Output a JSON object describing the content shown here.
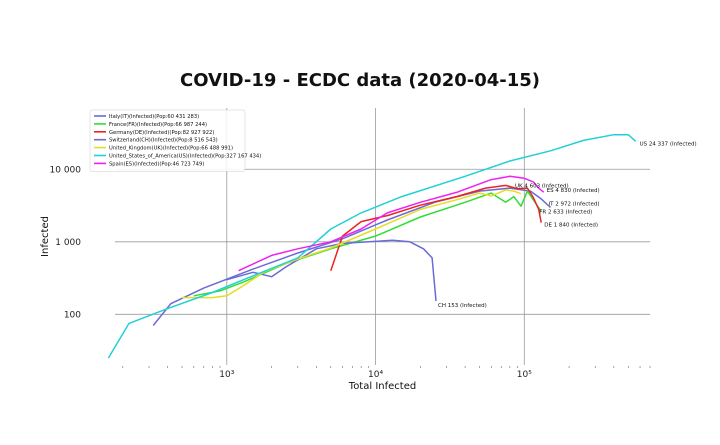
{
  "chart_data": {
    "type": "line",
    "title": "COVID-19 - ECDC data (2020-04-15)",
    "xlabel": "Total Infected",
    "ylabel": "Infected",
    "xscale": "log",
    "yscale": "log",
    "xlim": [
      130,
      700000
    ],
    "ylim": [
      20,
      70000
    ],
    "x_ticks": [
      {
        "value": 1000,
        "label": "10³"
      },
      {
        "value": 10000,
        "label": "10⁴"
      },
      {
        "value": 100000,
        "label": "10⁵"
      }
    ],
    "y_ticks": [
      {
        "value": 100,
        "label": "100"
      },
      {
        "value": 1000,
        "label": "1 000"
      },
      {
        "value": 10000,
        "label": "10 000"
      }
    ],
    "grid": true,
    "legend_position": "top-left",
    "series": [
      {
        "name": "Italy(IT)(Infected)(Pop:60 431 283)",
        "color": "#6a6ad8",
        "end_label": "IT 2 972 (Infected)",
        "points": [
          [
            320,
            70
          ],
          [
            420,
            140
          ],
          [
            700,
            230
          ],
          [
            1500,
            420
          ],
          [
            3000,
            700
          ],
          [
            6000,
            1100
          ],
          [
            12000,
            2000
          ],
          [
            25000,
            3500
          ],
          [
            50000,
            5000
          ],
          [
            80000,
            5500
          ],
          [
            110000,
            5000
          ],
          [
            130000,
            3900
          ],
          [
            150000,
            2972
          ]
        ]
      },
      {
        "name": "France(FR)(Infected)(Pop:66 987 244)",
        "color": "#33dd33",
        "end_label": "FR 2 633 (Infected)",
        "points": [
          [
            600,
            180
          ],
          [
            900,
            210
          ],
          [
            1300,
            280
          ],
          [
            2500,
            500
          ],
          [
            5000,
            800
          ],
          [
            10000,
            1200
          ],
          [
            20000,
            2200
          ],
          [
            40000,
            3500
          ],
          [
            60000,
            4700
          ],
          [
            75000,
            3500
          ],
          [
            85000,
            4200
          ],
          [
            95000,
            3100
          ],
          [
            105000,
            5000
          ],
          [
            115000,
            3800
          ],
          [
            130000,
            2633
          ]
        ]
      },
      {
        "name": "Germany(DE)(Infected)(Pop:82 927 922)",
        "color": "#ee2222",
        "end_label": "DE 1 840 (Infected)",
        "points": [
          [
            5000,
            400
          ],
          [
            6000,
            1200
          ],
          [
            8000,
            1900
          ],
          [
            12000,
            2300
          ],
          [
            20000,
            3200
          ],
          [
            35000,
            4200
          ],
          [
            55000,
            5500
          ],
          [
            75000,
            6000
          ],
          [
            90000,
            5400
          ],
          [
            105000,
            5500
          ],
          [
            115000,
            4100
          ],
          [
            125000,
            2800
          ],
          [
            130000,
            1840
          ]
        ]
      },
      {
        "name": "Switzerland(CH)(Infected)(Pop:8 516 543)",
        "color": "#6a6ad8",
        "end_label": "CH 153 (Infected)",
        "points": [
          [
            1000,
            300
          ],
          [
            1500,
            380
          ],
          [
            2000,
            330
          ],
          [
            2500,
            450
          ],
          [
            4000,
            800
          ],
          [
            6000,
            950
          ],
          [
            9000,
            1000
          ],
          [
            13000,
            1050
          ],
          [
            17000,
            1000
          ],
          [
            21000,
            800
          ],
          [
            24000,
            600
          ],
          [
            25500,
            153
          ]
        ]
      },
      {
        "name": "United_Kingdom(UK)(Infected)(Pop:66 488 991)",
        "color": "#e6dd22",
        "end_label": "UK 4 603 (Infected)",
        "points": [
          [
            500,
            170
          ],
          [
            800,
            170
          ],
          [
            1000,
            180
          ],
          [
            1300,
            250
          ],
          [
            1800,
            390
          ],
          [
            3000,
            580
          ],
          [
            5000,
            820
          ],
          [
            10000,
            1500
          ],
          [
            20000,
            2800
          ],
          [
            35000,
            3800
          ],
          [
            50000,
            4700
          ],
          [
            60000,
            4300
          ],
          [
            75000,
            5200
          ],
          [
            85000,
            5000
          ],
          [
            95000,
            4603
          ]
        ]
      },
      {
        "name": "United_States_of_America(US)(Infected)(Pop:327 167 434)",
        "color": "#22d0d8",
        "end_label": "US 24 337 (Infected)",
        "points": [
          [
            160,
            25
          ],
          [
            220,
            75
          ],
          [
            400,
            120
          ],
          [
            800,
            200
          ],
          [
            1500,
            340
          ],
          [
            3000,
            600
          ],
          [
            5000,
            1500
          ],
          [
            8000,
            2500
          ],
          [
            15000,
            4200
          ],
          [
            40000,
            8000
          ],
          [
            80000,
            13000
          ],
          [
            150000,
            18000
          ],
          [
            250000,
            25000
          ],
          [
            400000,
            30000
          ],
          [
            500000,
            30000
          ],
          [
            560000,
            24337
          ]
        ]
      },
      {
        "name": "Spain(ES)(Infected)(Pop:46 723 749)",
        "color": "#ee22ee",
        "end_label": "ES 4 830 (Infected)",
        "points": [
          [
            1200,
            400
          ],
          [
            2000,
            650
          ],
          [
            3000,
            800
          ],
          [
            5000,
            1000
          ],
          [
            8000,
            1500
          ],
          [
            12000,
            2500
          ],
          [
            20000,
            3500
          ],
          [
            35000,
            4800
          ],
          [
            60000,
            7200
          ],
          [
            80000,
            8000
          ],
          [
            100000,
            7500
          ],
          [
            115000,
            6700
          ],
          [
            125000,
            5500
          ],
          [
            135000,
            4830
          ]
        ]
      }
    ]
  }
}
